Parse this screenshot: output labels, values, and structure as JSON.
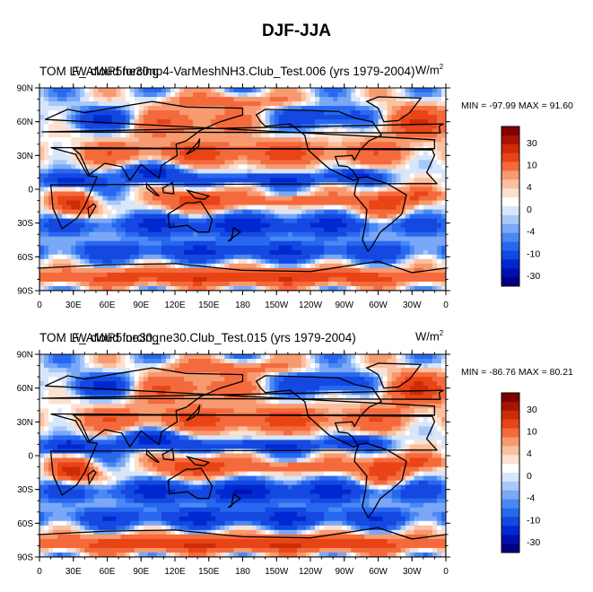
{
  "figure": {
    "title": "DJF-JJA"
  },
  "palette": [
    "#000080",
    "#0010b0",
    "#0028d0",
    "#1448e0",
    "#2868f0",
    "#4a88f4",
    "#7aa8f6",
    "#a8c8f8",
    "#d8e6fb",
    "#ffffff",
    "#fde0d0",
    "#fbc0a0",
    "#f89a70",
    "#f46a3c",
    "#e84416",
    "#cc2c06",
    "#a81402",
    "#800000"
  ],
  "colorbar_labels": [
    "30",
    "10",
    "4",
    "0",
    "-4",
    "-10",
    "-30"
  ],
  "chart_data": [
    {
      "type": "heatmap",
      "title": "TOM LW cloud forcing",
      "title_overlay": "F_AMIP5ne30np4-VarMeshNH3.Club_Test.006 (yrs 1979-2004)",
      "units": "W/m",
      "units_exp": "2",
      "stats": "MIN = -97.99 MAX =  91.60",
      "min": -97.99,
      "max": 91.6,
      "xlabels": [
        "0",
        "30E",
        "60E",
        "90E",
        "120E",
        "150E",
        "180",
        "150W",
        "120W",
        "90W",
        "60W",
        "30W",
        "0"
      ],
      "ylabels": [
        "90N",
        "60N",
        "30N",
        "0",
        "30S",
        "60S",
        "90S"
      ],
      "xlim": [
        0,
        360
      ],
      "ylim": [
        -90,
        90
      ]
    },
    {
      "type": "heatmap",
      "title": "TOM LW cloud forcing",
      "title_overlay": "F_AMIP5.ne30_ne30.Club_Test.015 (yrs 1979-2004)",
      "units": "W/m",
      "units_exp": "2",
      "stats": "MIN = -86.76 MAX =  80.21",
      "min": -86.76,
      "max": 80.21,
      "xlabels": [
        "0",
        "30E",
        "60E",
        "90E",
        "120E",
        "150E",
        "180",
        "150W",
        "120W",
        "90W",
        "60W",
        "30W",
        "0"
      ],
      "ylabels": [
        "90N",
        "60N",
        "30N",
        "0",
        "30S",
        "60S",
        "90S"
      ],
      "xlim": [
        0,
        360
      ],
      "ylim": [
        -90,
        90
      ]
    }
  ]
}
